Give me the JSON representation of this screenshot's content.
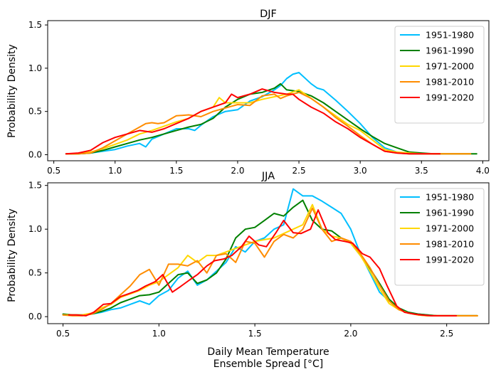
{
  "figure": {
    "xlabel_line1": "Daily Mean Temperature",
    "xlabel_line2": "Ensemble Spread [°C]"
  },
  "chart_data": [
    {
      "type": "line",
      "title": "DJF",
      "xlabel": "",
      "ylabel": "Probability Density",
      "xlim": [
        0.45,
        4.05
      ],
      "ylim": [
        -0.07,
        1.55
      ],
      "xticks": [
        0.5,
        1.0,
        1.5,
        2.0,
        2.5,
        3.0,
        3.5,
        4.0
      ],
      "xtick_labels": [
        "0.5",
        "1.0",
        "1.5",
        "2.0",
        "2.5",
        "3.0",
        "3.5",
        "4.0"
      ],
      "yticks": [
        0.0,
        0.5,
        1.0,
        1.5
      ],
      "ytick_labels": [
        "0.0",
        "0.5",
        "1.0",
        "1.5"
      ],
      "legend_position": "top-right",
      "grid": false,
      "series": [
        {
          "name": "1951-1980",
          "color": "#00bfff",
          "x": [
            0.6,
            0.7,
            0.8,
            0.9,
            1.0,
            1.1,
            1.2,
            1.25,
            1.3,
            1.4,
            1.5,
            1.6,
            1.65,
            1.7,
            1.8,
            1.9,
            2.0,
            2.1,
            2.2,
            2.3,
            2.35,
            2.4,
            2.45,
            2.5,
            2.6,
            2.65,
            2.7,
            2.8,
            2.9,
            3.0,
            3.1,
            3.2,
            3.3,
            3.4,
            3.5,
            3.6,
            3.7,
            3.8,
            3.9
          ],
          "y": [
            0.01,
            0.01,
            0.02,
            0.04,
            0.06,
            0.1,
            0.13,
            0.09,
            0.18,
            0.24,
            0.3,
            0.3,
            0.28,
            0.34,
            0.44,
            0.5,
            0.52,
            0.62,
            0.67,
            0.75,
            0.8,
            0.88,
            0.93,
            0.95,
            0.82,
            0.77,
            0.75,
            0.63,
            0.5,
            0.36,
            0.2,
            0.08,
            0.03,
            0.01,
            0.01,
            0.01,
            0.01,
            0.01,
            0.01
          ]
        },
        {
          "name": "1961-1990",
          "color": "#008000",
          "x": [
            0.6,
            0.7,
            0.8,
            0.9,
            1.0,
            1.1,
            1.2,
            1.3,
            1.4,
            1.5,
            1.6,
            1.7,
            1.8,
            1.9,
            2.0,
            2.1,
            2.2,
            2.3,
            2.35,
            2.4,
            2.5,
            2.6,
            2.7,
            2.8,
            2.9,
            3.0,
            3.1,
            3.2,
            3.3,
            3.4,
            3.5,
            3.6,
            3.7,
            3.8,
            3.9,
            3.95
          ],
          "y": [
            0.01,
            0.01,
            0.02,
            0.05,
            0.09,
            0.13,
            0.17,
            0.2,
            0.24,
            0.28,
            0.32,
            0.35,
            0.42,
            0.55,
            0.64,
            0.7,
            0.72,
            0.77,
            0.82,
            0.75,
            0.73,
            0.68,
            0.6,
            0.5,
            0.4,
            0.3,
            0.21,
            0.13,
            0.08,
            0.03,
            0.02,
            0.01,
            0.01,
            0.01,
            0.01,
            0.01
          ]
        },
        {
          "name": "1971-2000",
          "color": "#ffd700",
          "x": [
            0.6,
            0.7,
            0.8,
            0.9,
            1.0,
            1.1,
            1.2,
            1.3,
            1.4,
            1.5,
            1.6,
            1.7,
            1.8,
            1.85,
            1.9,
            2.0,
            2.1,
            2.2,
            2.3,
            2.4,
            2.5,
            2.6,
            2.7,
            2.8,
            2.9,
            3.0,
            3.1,
            3.2,
            3.3,
            3.4,
            3.5,
            3.6,
            3.7,
            3.8,
            3.9
          ],
          "y": [
            0.01,
            0.01,
            0.03,
            0.07,
            0.12,
            0.17,
            0.24,
            0.28,
            0.33,
            0.38,
            0.42,
            0.5,
            0.55,
            0.66,
            0.6,
            0.6,
            0.6,
            0.64,
            0.67,
            0.7,
            0.75,
            0.65,
            0.55,
            0.45,
            0.35,
            0.28,
            0.17,
            0.06,
            0.03,
            0.02,
            0.01,
            0.01,
            0.01,
            0.01,
            0.01
          ]
        },
        {
          "name": "1981-2010",
          "color": "#ff8c00",
          "x": [
            0.6,
            0.7,
            0.8,
            0.9,
            1.0,
            1.1,
            1.2,
            1.25,
            1.3,
            1.35,
            1.4,
            1.5,
            1.6,
            1.7,
            1.8,
            1.9,
            2.0,
            2.1,
            2.2,
            2.3,
            2.35,
            2.4,
            2.5,
            2.6,
            2.7,
            2.8,
            2.9,
            3.0,
            3.1,
            3.2,
            3.3,
            3.4,
            3.5,
            3.6,
            3.7,
            3.8,
            3.9
          ],
          "y": [
            0.01,
            0.01,
            0.02,
            0.08,
            0.16,
            0.24,
            0.32,
            0.36,
            0.37,
            0.36,
            0.37,
            0.45,
            0.46,
            0.44,
            0.5,
            0.54,
            0.58,
            0.57,
            0.68,
            0.7,
            0.65,
            0.68,
            0.72,
            0.65,
            0.55,
            0.43,
            0.33,
            0.22,
            0.12,
            0.04,
            0.02,
            0.01,
            0.01,
            0.01,
            0.01,
            0.01,
            0.01
          ]
        },
        {
          "name": "1991-2020",
          "color": "#ff0000",
          "x": [
            0.6,
            0.7,
            0.8,
            0.9,
            1.0,
            1.1,
            1.2,
            1.3,
            1.4,
            1.5,
            1.6,
            1.7,
            1.8,
            1.9,
            1.95,
            2.0,
            2.1,
            2.2,
            2.3,
            2.4,
            2.45,
            2.5,
            2.6,
            2.7,
            2.8,
            2.9,
            3.0,
            3.1,
            3.2,
            3.3,
            3.4,
            3.5,
            3.6,
            3.65
          ],
          "y": [
            0.01,
            0.02,
            0.05,
            0.14,
            0.2,
            0.24,
            0.28,
            0.26,
            0.3,
            0.36,
            0.42,
            0.5,
            0.55,
            0.6,
            0.7,
            0.66,
            0.7,
            0.76,
            0.72,
            0.7,
            0.7,
            0.64,
            0.55,
            0.48,
            0.38,
            0.3,
            0.2,
            0.12,
            0.04,
            0.02,
            0.01,
            0.01,
            0.01,
            0.01
          ]
        }
      ]
    },
    {
      "type": "line",
      "title": "JJA",
      "xlabel": "Daily Mean Temperature\nEnsemble Spread [°C]",
      "ylabel": "Probability Density",
      "xlim": [
        0.42,
        2.72
      ],
      "ylim": [
        -0.08,
        1.53
      ],
      "xticks": [
        0.5,
        1.0,
        1.5,
        2.0,
        2.5
      ],
      "xtick_labels": [
        "0.5",
        "1.0",
        "1.5",
        "2.0",
        "2.5"
      ],
      "yticks": [
        0.0,
        0.5,
        1.0,
        1.5
      ],
      "ytick_labels": [
        "0.0",
        "0.5",
        "1.0",
        "1.5"
      ],
      "legend_position": "top-right",
      "grid": false,
      "series": [
        {
          "name": "1951-1980",
          "color": "#00bfff",
          "x": [
            0.5,
            0.55,
            0.6,
            0.65,
            0.7,
            0.75,
            0.8,
            0.85,
            0.9,
            0.95,
            1.0,
            1.05,
            1.1,
            1.15,
            1.2,
            1.25,
            1.3,
            1.35,
            1.4,
            1.45,
            1.5,
            1.55,
            1.6,
            1.65,
            1.7,
            1.75,
            1.8,
            1.85,
            1.9,
            1.95,
            2.0,
            2.05,
            2.1,
            2.15,
            2.2,
            2.25,
            2.3,
            2.35,
            2.4,
            2.45,
            2.5,
            2.55,
            2.6,
            2.66
          ],
          "y": [
            0.02,
            0.02,
            0.02,
            0.03,
            0.05,
            0.08,
            0.1,
            0.14,
            0.18,
            0.14,
            0.24,
            0.3,
            0.44,
            0.52,
            0.36,
            0.42,
            0.52,
            0.62,
            0.8,
            0.74,
            0.86,
            0.9,
            1.0,
            1.05,
            1.46,
            1.38,
            1.38,
            1.32,
            1.25,
            1.18,
            1.0,
            0.72,
            0.5,
            0.28,
            0.18,
            0.1,
            0.05,
            0.03,
            0.02,
            0.01,
            0.01,
            0.01,
            0.01,
            0.01
          ]
        },
        {
          "name": "1961-1990",
          "color": "#008000",
          "x": [
            0.5,
            0.55,
            0.6,
            0.65,
            0.7,
            0.75,
            0.8,
            0.85,
            0.9,
            0.95,
            1.0,
            1.05,
            1.1,
            1.15,
            1.2,
            1.25,
            1.3,
            1.35,
            1.4,
            1.45,
            1.5,
            1.55,
            1.6,
            1.65,
            1.7,
            1.75,
            1.8,
            1.85,
            1.9,
            1.95,
            2.0,
            2.05,
            2.1,
            2.15,
            2.2,
            2.25,
            2.3,
            2.35,
            2.4,
            2.45,
            2.5,
            2.55,
            2.6,
            2.66
          ],
          "y": [
            0.03,
            0.02,
            0.02,
            0.03,
            0.06,
            0.1,
            0.16,
            0.2,
            0.24,
            0.25,
            0.28,
            0.38,
            0.48,
            0.5,
            0.38,
            0.42,
            0.5,
            0.66,
            0.9,
            1.0,
            1.02,
            1.1,
            1.18,
            1.15,
            1.25,
            1.33,
            1.1,
            1.0,
            0.98,
            0.9,
            0.84,
            0.7,
            0.55,
            0.38,
            0.2,
            0.1,
            0.05,
            0.03,
            0.02,
            0.01,
            0.01,
            0.01,
            0.01,
            0.01
          ]
        },
        {
          "name": "1971-2000",
          "color": "#ffd700",
          "x": [
            0.5,
            0.55,
            0.6,
            0.65,
            0.7,
            0.75,
            0.8,
            0.85,
            0.9,
            0.95,
            1.0,
            1.05,
            1.1,
            1.15,
            1.2,
            1.25,
            1.3,
            1.35,
            1.4,
            1.45,
            1.5,
            1.55,
            1.6,
            1.65,
            1.7,
            1.75,
            1.8,
            1.85,
            1.9,
            1.95,
            2.0,
            2.05,
            2.1,
            2.15,
            2.2,
            2.25,
            2.3,
            2.35,
            2.4,
            2.45,
            2.5,
            2.55,
            2.6,
            2.66
          ],
          "y": [
            0.02,
            0.02,
            0.02,
            0.04,
            0.1,
            0.14,
            0.22,
            0.26,
            0.3,
            0.36,
            0.4,
            0.48,
            0.56,
            0.7,
            0.62,
            0.7,
            0.7,
            0.74,
            0.78,
            0.82,
            0.86,
            0.88,
            0.9,
            0.95,
            1.0,
            1.05,
            1.28,
            1.0,
            0.92,
            0.9,
            0.84,
            0.7,
            0.52,
            0.32,
            0.15,
            0.08,
            0.04,
            0.02,
            0.01,
            0.01,
            0.01,
            0.01,
            0.01,
            0.01
          ]
        },
        {
          "name": "1981-2010",
          "color": "#ff8c00",
          "x": [
            0.5,
            0.55,
            0.6,
            0.65,
            0.7,
            0.75,
            0.8,
            0.85,
            0.9,
            0.95,
            1.0,
            1.05,
            1.1,
            1.15,
            1.2,
            1.25,
            1.3,
            1.35,
            1.4,
            1.45,
            1.5,
            1.55,
            1.6,
            1.65,
            1.7,
            1.75,
            1.8,
            1.85,
            1.9,
            1.95,
            2.0,
            2.05,
            2.1,
            2.15,
            2.2,
            2.25,
            2.3,
            2.35,
            2.4,
            2.45,
            2.5,
            2.55,
            2.6,
            2.66
          ],
          "y": [
            0.02,
            0.01,
            0.01,
            0.03,
            0.08,
            0.15,
            0.25,
            0.35,
            0.48,
            0.54,
            0.36,
            0.6,
            0.6,
            0.58,
            0.64,
            0.5,
            0.7,
            0.72,
            0.62,
            0.86,
            0.84,
            0.68,
            0.86,
            0.94,
            0.9,
            1.0,
            1.24,
            1.0,
            0.86,
            0.9,
            0.86,
            0.72,
            0.56,
            0.36,
            0.18,
            0.08,
            0.04,
            0.02,
            0.01,
            0.01,
            0.01,
            0.01,
            0.01,
            0.01
          ]
        },
        {
          "name": "1991-2020",
          "color": "#ff0000",
          "x": [
            0.53,
            0.57,
            0.62,
            0.66,
            0.71,
            0.75,
            0.8,
            0.84,
            0.89,
            0.93,
            0.98,
            1.02,
            1.07,
            1.11,
            1.16,
            1.2,
            1.25,
            1.29,
            1.34,
            1.38,
            1.43,
            1.47,
            1.52,
            1.56,
            1.61,
            1.65,
            1.7,
            1.74,
            1.79,
            1.83,
            1.88,
            1.92,
            1.97,
            2.01,
            2.06,
            2.1,
            2.15,
            2.19,
            2.24,
            2.28,
            2.33,
            2.37,
            2.42,
            2.46,
            2.51,
            2.55
          ],
          "y": [
            0.02,
            0.02,
            0.01,
            0.05,
            0.14,
            0.15,
            0.23,
            0.26,
            0.3,
            0.35,
            0.4,
            0.48,
            0.28,
            0.34,
            0.42,
            0.48,
            0.58,
            0.64,
            0.66,
            0.7,
            0.8,
            0.92,
            0.82,
            0.8,
            0.96,
            1.1,
            0.96,
            0.95,
            1.0,
            1.22,
            0.96,
            0.88,
            0.86,
            0.84,
            0.72,
            0.68,
            0.55,
            0.35,
            0.12,
            0.05,
            0.03,
            0.02,
            0.01,
            0.01,
            0.01,
            0.01
          ]
        }
      ]
    }
  ]
}
